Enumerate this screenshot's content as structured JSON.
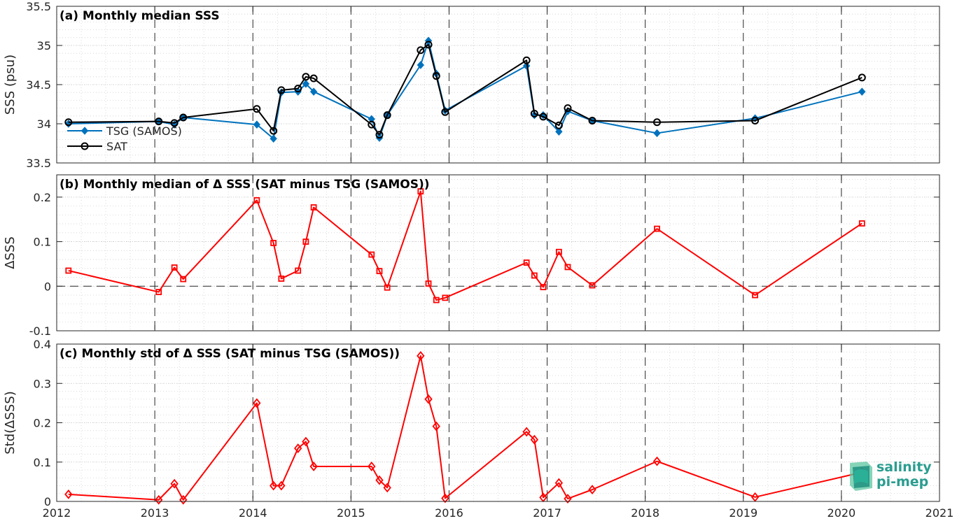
{
  "chart_data": [
    {
      "type": "line",
      "title": "(a) Monthly median SSS",
      "ylabel": "SSS (psu)",
      "xlim": [
        2012,
        2021
      ],
      "ylim": [
        33.5,
        35.5
      ],
      "yticks": [
        "33.5",
        "34",
        "34.5",
        "35",
        "35.5"
      ],
      "grid": true,
      "legend_position": "bottom-left",
      "series": [
        {
          "name": "TSG (SAMOS)",
          "color": "#0072BD",
          "marker": "diamond",
          "x": [
            2012.12,
            2013.04,
            2013.2,
            2013.29,
            2014.04,
            2014.21,
            2014.29,
            2014.46,
            2014.54,
            2014.62,
            2015.21,
            2015.29,
            2015.37,
            2015.71,
            2015.79,
            2015.87,
            2015.96,
            2016.79,
            2016.87,
            2016.96,
            2017.12,
            2017.21,
            2017.46,
            2018.12,
            2019.12,
            2020.21
          ],
          "y": [
            34.0,
            34.03,
            33.99,
            34.08,
            33.99,
            33.81,
            34.4,
            34.41,
            34.51,
            34.41,
            34.06,
            33.82,
            34.11,
            34.75,
            35.06,
            34.64,
            34.17,
            34.74,
            34.11,
            34.11,
            33.9,
            34.16,
            34.04,
            33.88,
            34.07,
            34.41
          ]
        },
        {
          "name": "SAT",
          "color": "#000000",
          "marker": "circle",
          "x": [
            2012.12,
            2013.04,
            2013.2,
            2013.29,
            2014.04,
            2014.21,
            2014.29,
            2014.46,
            2014.54,
            2014.62,
            2015.21,
            2015.29,
            2015.37,
            2015.71,
            2015.79,
            2015.87,
            2015.96,
            2016.79,
            2016.87,
            2016.96,
            2017.12,
            2017.21,
            2017.46,
            2018.12,
            2019.12,
            2020.21
          ],
          "y": [
            34.02,
            34.03,
            34.01,
            34.08,
            34.19,
            33.91,
            34.43,
            34.45,
            34.6,
            34.58,
            33.99,
            33.86,
            34.11,
            34.94,
            35.01,
            34.61,
            34.15,
            34.81,
            34.13,
            34.09,
            33.98,
            34.2,
            34.04,
            34.02,
            34.04,
            34.59
          ]
        }
      ]
    },
    {
      "type": "line",
      "title": "(b) Monthly median of Δ SSS (SAT minus TSG (SAMOS))",
      "ylabel": "ΔSSS",
      "xlim": [
        2012,
        2021
      ],
      "ylim": [
        -0.1,
        0.25
      ],
      "yticks": [
        "-0.1",
        "0",
        "0.1",
        "0.2"
      ],
      "zero_line": true,
      "grid": true,
      "series": [
        {
          "color": "#FF0000",
          "marker": "square",
          "x": [
            2012.12,
            2013.04,
            2013.2,
            2013.29,
            2014.04,
            2014.21,
            2014.29,
            2014.46,
            2014.54,
            2014.62,
            2015.21,
            2015.29,
            2015.37,
            2015.71,
            2015.79,
            2015.87,
            2015.96,
            2016.79,
            2016.87,
            2016.96,
            2017.12,
            2017.21,
            2017.46,
            2018.12,
            2019.12,
            2020.21
          ],
          "y": [
            0.035,
            -0.013,
            0.042,
            0.016,
            0.193,
            0.097,
            0.017,
            0.035,
            0.1,
            0.177,
            0.071,
            0.034,
            -0.003,
            0.213,
            0.006,
            -0.031,
            -0.026,
            0.053,
            0.024,
            -0.002,
            0.077,
            0.043,
            0.002,
            0.129,
            -0.02,
            0.141
          ]
        }
      ]
    },
    {
      "type": "line",
      "title": "(c) Monthly std of Δ SSS (SAT minus TSG (SAMOS))",
      "ylabel": "Std(ΔSSS)",
      "xlabel": "",
      "xlim": [
        2012,
        2021
      ],
      "xticks": [
        "2012",
        "2013",
        "2014",
        "2015",
        "2016",
        "2017",
        "2018",
        "2019",
        "2020",
        "2021"
      ],
      "ylim": [
        0,
        0.4
      ],
      "yticks": [
        "0",
        "0.1",
        "0.2",
        "0.3",
        "0.4"
      ],
      "grid": true,
      "series": [
        {
          "color": "#FF0000",
          "marker": "diamond-open",
          "x": [
            2012.12,
            2013.04,
            2013.2,
            2013.29,
            2014.04,
            2014.21,
            2014.29,
            2014.46,
            2014.54,
            2014.62,
            2015.21,
            2015.29,
            2015.37,
            2015.71,
            2015.79,
            2015.87,
            2015.96,
            2016.79,
            2016.87,
            2016.96,
            2017.12,
            2017.21,
            2017.46,
            2018.12,
            2019.12,
            2020.21
          ],
          "y": [
            0.018,
            0.004,
            0.045,
            0.004,
            0.25,
            0.04,
            0.04,
            0.135,
            0.152,
            0.089,
            0.089,
            0.054,
            0.035,
            0.37,
            0.26,
            0.191,
            0.008,
            0.177,
            0.157,
            0.01,
            0.047,
            0.007,
            0.03,
            0.102,
            0.011,
            0.074
          ]
        }
      ]
    }
  ],
  "logo": {
    "line1": "salinity",
    "line2": "pi-mep"
  }
}
